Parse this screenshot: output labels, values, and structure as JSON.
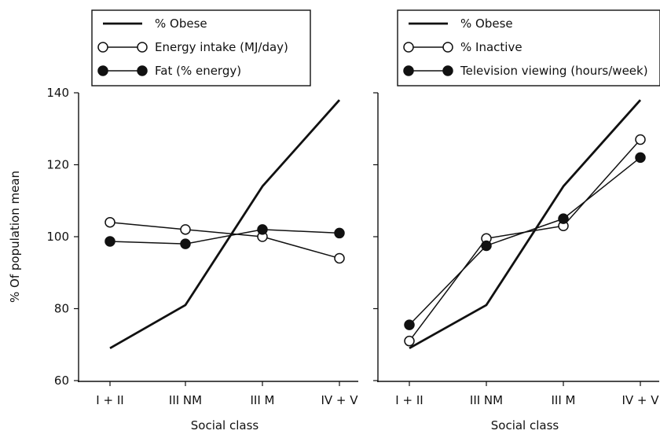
{
  "chart_data": [
    {
      "type": "line",
      "categories": [
        "I + II",
        "III NM",
        "III M",
        "IV + V"
      ],
      "xlabel": "Social class",
      "ylabel": "% Of population mean",
      "ylim": [
        60,
        140
      ],
      "yticks": [
        60,
        80,
        100,
        120,
        140
      ],
      "grid": false,
      "legend_position": "top",
      "series": [
        {
          "name": "% Obese",
          "values": [
            69,
            81,
            114,
            138
          ],
          "marker": "none",
          "color": "#111111"
        },
        {
          "name": "Energy intake (MJ/day)",
          "values": [
            104,
            102,
            100,
            94
          ],
          "marker": "open-circle",
          "color": "#111111"
        },
        {
          "name": "Fat (% energy)",
          "values": [
            98.7,
            98,
            102,
            101
          ],
          "marker": "filled-circle",
          "color": "#111111"
        }
      ]
    },
    {
      "type": "line",
      "categories": [
        "I + II",
        "III NM",
        "III M",
        "IV + V"
      ],
      "xlabel": "Social class",
      "ylabel": "",
      "ylim": [
        60,
        140
      ],
      "yticks": [
        60,
        80,
        100,
        120,
        140
      ],
      "grid": false,
      "legend_position": "top",
      "series": [
        {
          "name": "% Obese",
          "values": [
            69,
            81,
            114,
            138
          ],
          "marker": "none",
          "color": "#111111"
        },
        {
          "name": "% Inactive",
          "values": [
            71,
            99.5,
            103,
            127
          ],
          "marker": "open-circle",
          "color": "#111111"
        },
        {
          "name": "Television viewing (hours/week)",
          "values": [
            75.5,
            97.5,
            105,
            122
          ],
          "marker": "filled-circle",
          "color": "#111111"
        }
      ]
    }
  ]
}
